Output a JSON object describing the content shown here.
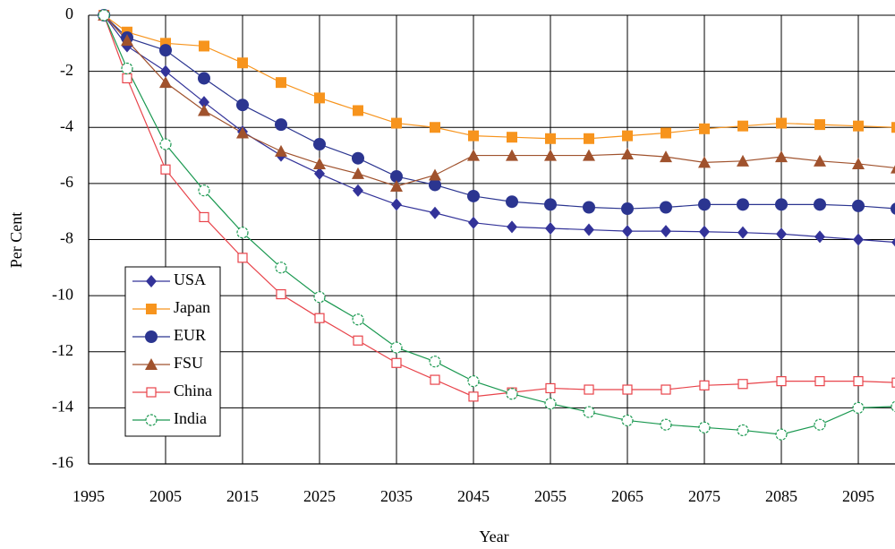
{
  "chart_data": {
    "type": "line",
    "x_label": "Year",
    "y_label": "Per Cent",
    "x": [
      1997,
      2000,
      2005,
      2010,
      2015,
      2020,
      2025,
      2030,
      2035,
      2040,
      2045,
      2050,
      2055,
      2060,
      2065,
      2070,
      2075,
      2080,
      2085,
      2090,
      2095,
      2100
    ],
    "xlim": [
      1995,
      2100
    ],
    "xticks": [
      1995,
      2005,
      2015,
      2025,
      2035,
      2045,
      2055,
      2065,
      2075,
      2085,
      2095
    ],
    "ylim": [
      -16,
      0
    ],
    "yticks": [
      -16,
      -14,
      -12,
      -10,
      -8,
      -6,
      -4,
      -2,
      0
    ],
    "grid": true,
    "legend": "lower left",
    "series": [
      {
        "name": "USA",
        "color": "#333399",
        "marker": "diamond",
        "values": [
          0,
          -1.1,
          -2.0,
          -3.1,
          -4.15,
          -5.0,
          -5.65,
          -6.25,
          -6.75,
          -7.05,
          -7.4,
          -7.55,
          -7.6,
          -7.65,
          -7.7,
          -7.7,
          -7.72,
          -7.75,
          -7.8,
          -7.9,
          -8.0,
          -8.1
        ]
      },
      {
        "name": "Japan",
        "color": "#f7941d",
        "marker": "square",
        "values": [
          0,
          -0.6,
          -1.0,
          -1.1,
          -1.7,
          -2.4,
          -2.95,
          -3.4,
          -3.85,
          -4.0,
          -4.3,
          -4.35,
          -4.4,
          -4.4,
          -4.3,
          -4.2,
          -4.05,
          -3.95,
          -3.85,
          -3.9,
          -3.95,
          -4.0
        ]
      },
      {
        "name": "EUR",
        "color": "#2b3590",
        "marker": "circle",
        "values": [
          0,
          -0.8,
          -1.25,
          -2.25,
          -3.2,
          -3.9,
          -4.6,
          -5.1,
          -5.75,
          -6.05,
          -6.45,
          -6.65,
          -6.75,
          -6.85,
          -6.9,
          -6.85,
          -6.75,
          -6.75,
          -6.75,
          -6.75,
          -6.8,
          -6.9
        ]
      },
      {
        "name": "FSU",
        "color": "#a0522d",
        "marker": "triangle",
        "values": [
          0,
          -0.9,
          -2.4,
          -3.4,
          -4.2,
          -4.85,
          -5.3,
          -5.65,
          -6.1,
          -5.7,
          -5.0,
          -5.0,
          -5.0,
          -5.0,
          -4.95,
          -5.05,
          -5.25,
          -5.2,
          -5.05,
          -5.2,
          -5.3,
          -5.45
        ]
      },
      {
        "name": "China",
        "color": "#e8434a",
        "marker": "square-open",
        "values": [
          0,
          -2.25,
          -5.5,
          -7.2,
          -8.65,
          -9.95,
          -10.8,
          -11.6,
          -12.4,
          -13.0,
          -13.6,
          -13.45,
          -13.3,
          -13.35,
          -13.35,
          -13.35,
          -13.2,
          -13.15,
          -13.05,
          -13.05,
          -13.05,
          -13.1
        ]
      },
      {
        "name": "India",
        "color": "#1a9850",
        "marker": "circle-open",
        "values": [
          0,
          -1.9,
          -4.6,
          -6.25,
          -7.75,
          -9.0,
          -10.05,
          -10.85,
          -11.85,
          -12.35,
          -13.05,
          -13.5,
          -13.85,
          -14.15,
          -14.45,
          -14.6,
          -14.7,
          -14.8,
          -14.95,
          -14.6,
          -14.0,
          -13.95
        ]
      }
    ]
  }
}
